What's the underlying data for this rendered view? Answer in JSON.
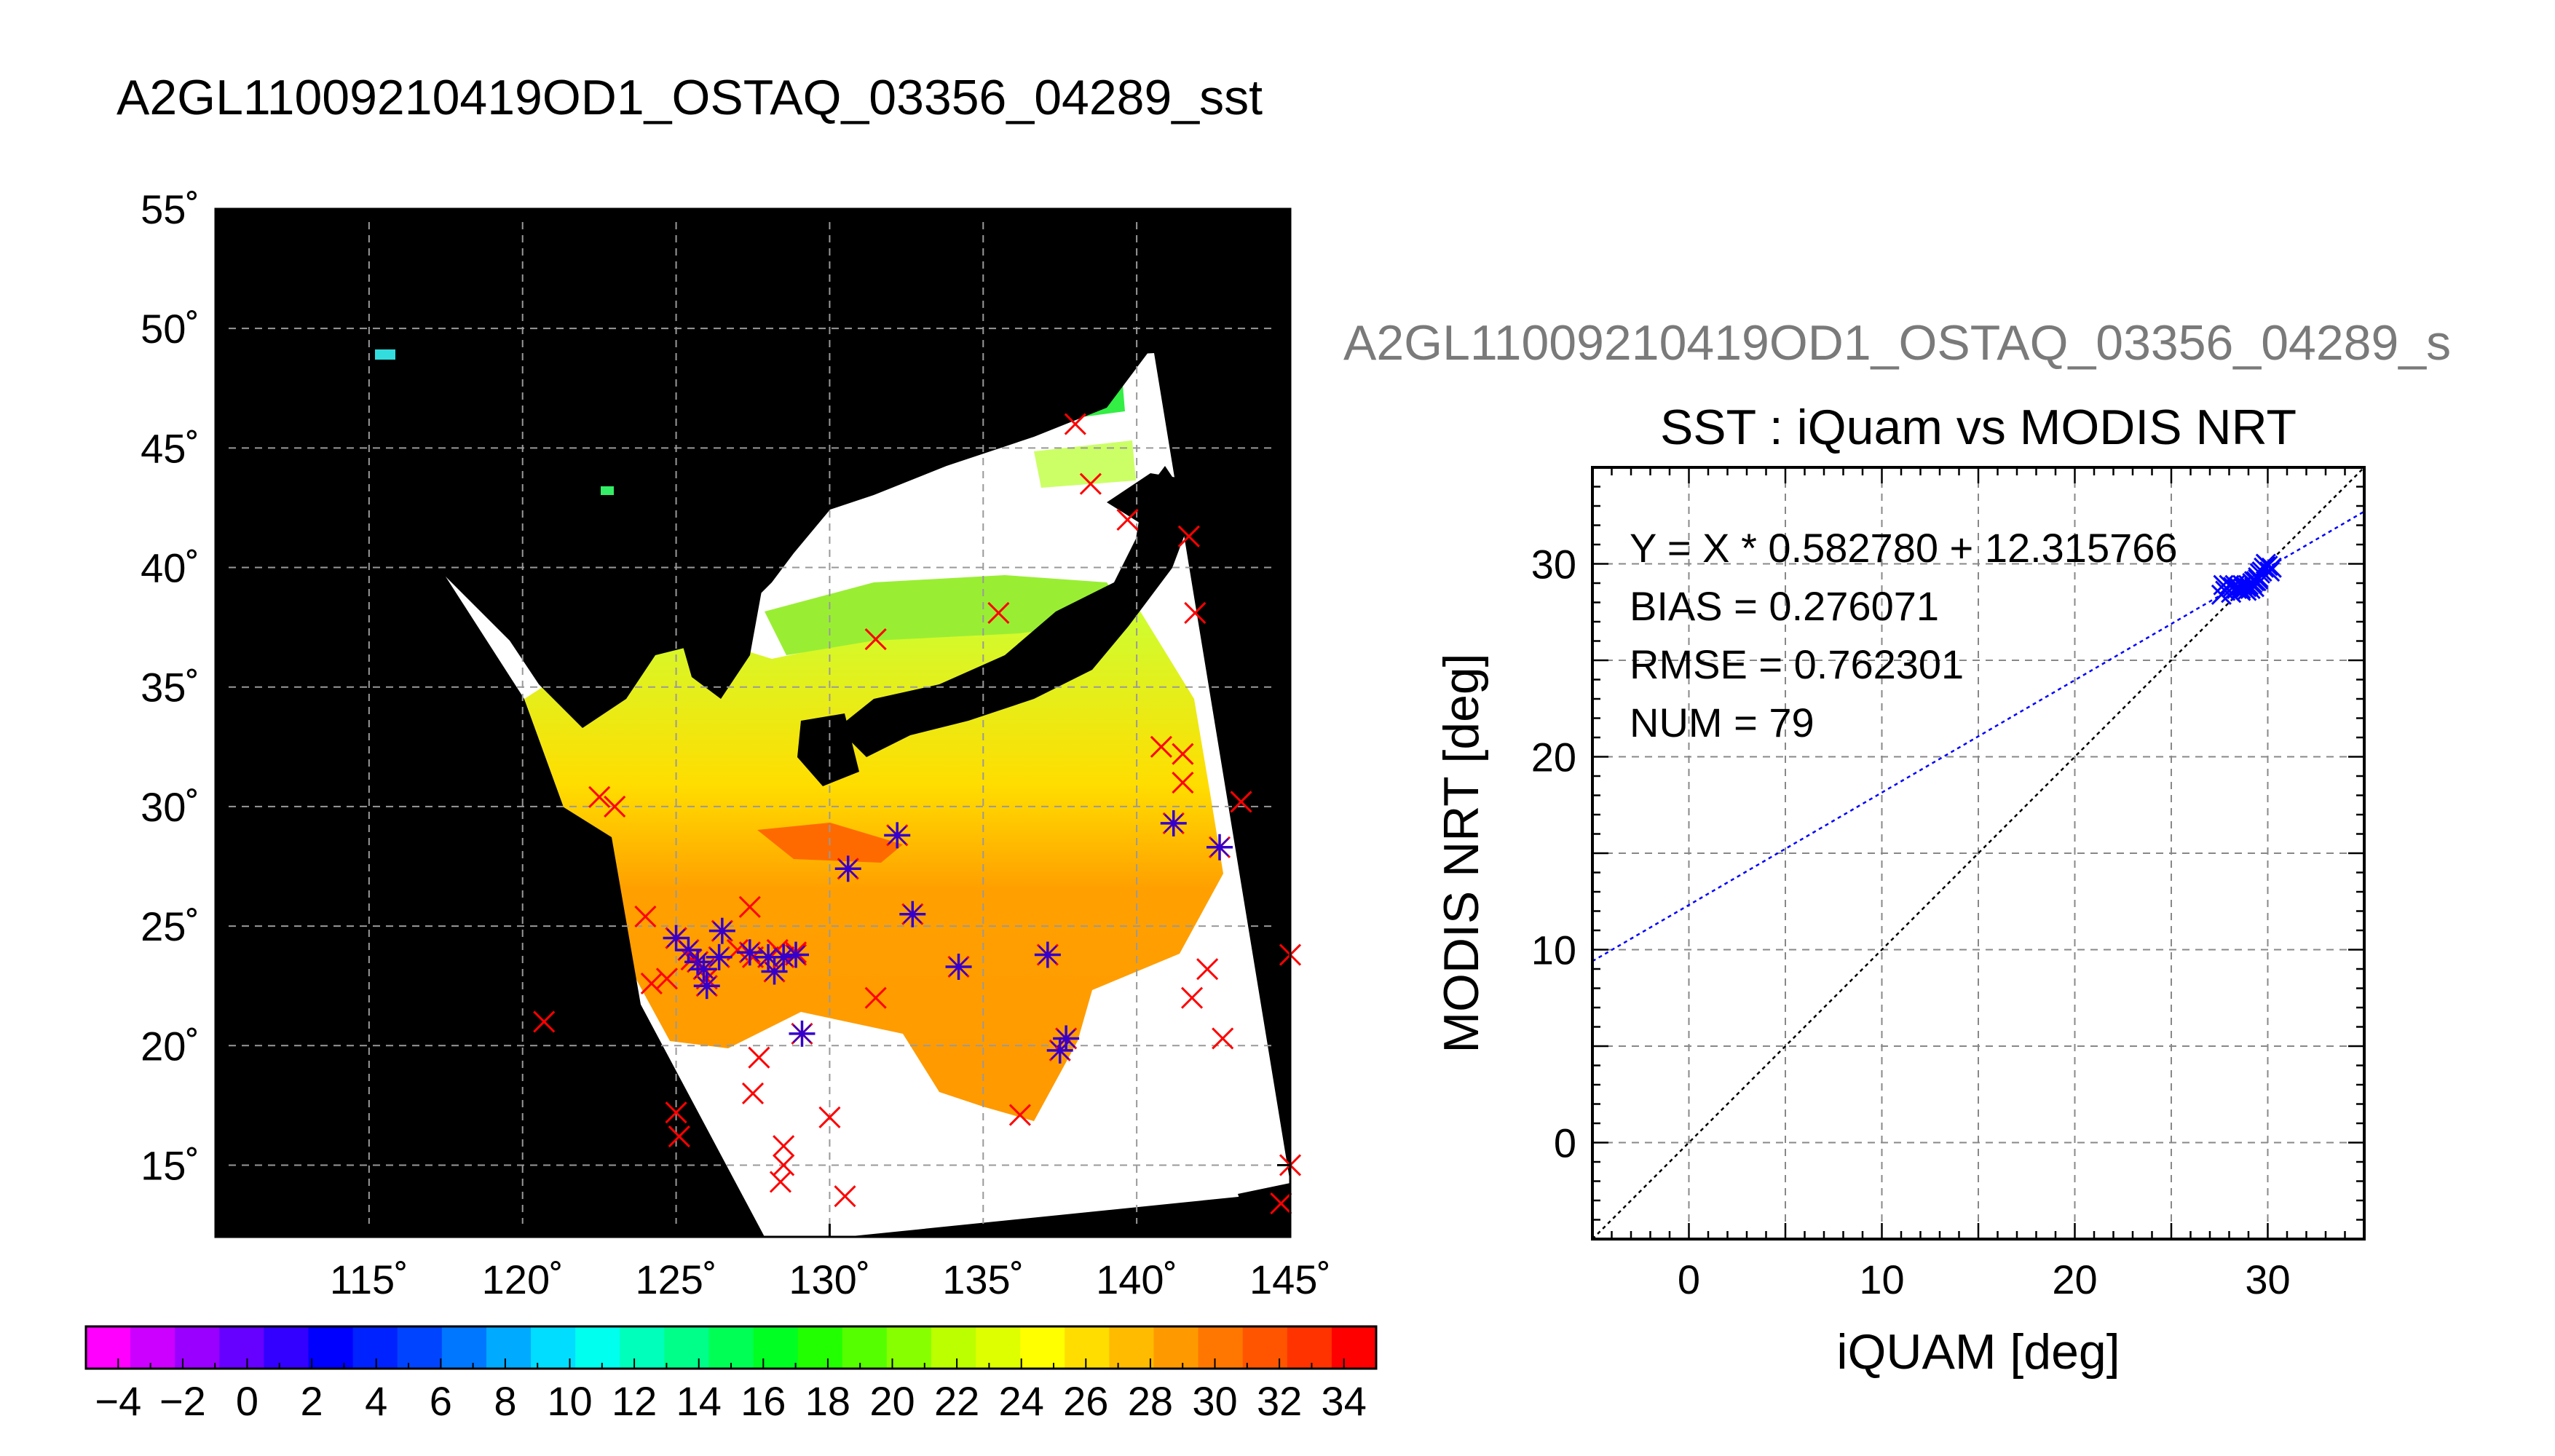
{
  "main_title": "A2GL11009210419OD1_OSTAQ_03356_04289_sst",
  "right_title_truncated": "A2GL11009210419OD1_OSTAQ_03356_04289_s",
  "chart_data": [
    {
      "type": "heatmap",
      "subtype": "map",
      "title": "A2GL11009210419OD1_OSTAQ_03356_04289_sst",
      "xlim": [
        110,
        145
      ],
      "ylim": [
        12,
        55
      ],
      "x_ticks": [
        115,
        120,
        125,
        130,
        135,
        140,
        145
      ],
      "y_ticks": [
        15,
        20,
        25,
        30,
        35,
        40,
        45,
        50,
        55
      ],
      "x_tick_labels": [
        "115˚",
        "120˚",
        "125˚",
        "130˚",
        "135˚",
        "140˚",
        "145˚"
      ],
      "y_tick_labels": [
        "15˚",
        "20˚",
        "25˚",
        "30˚",
        "35˚",
        "40˚",
        "45˚",
        "50˚",
        "55˚"
      ],
      "grid": true,
      "colorbar": {
        "min": -5,
        "max": 35,
        "tick_values": [
          -4,
          -2,
          0,
          2,
          4,
          6,
          8,
          10,
          12,
          14,
          16,
          18,
          20,
          22,
          24,
          26,
          28,
          30,
          32,
          34
        ],
        "tick_labels": [
          "−4",
          "−2",
          "0",
          "2",
          "4",
          "6",
          "8",
          "10",
          "12",
          "14",
          "16",
          "18",
          "20",
          "22",
          "24",
          "26",
          "28",
          "30",
          "32",
          "34"
        ],
        "colors": [
          "#ff00ff",
          "#cc00ff",
          "#9900ff",
          "#6600ff",
          "#3300ff",
          "#0000ff",
          "#0022ff",
          "#0044ff",
          "#0077ff",
          "#00aaff",
          "#00ddff",
          "#00ffee",
          "#00ffbb",
          "#00ff88",
          "#00ff55",
          "#00ff22",
          "#22ff00",
          "#55ff00",
          "#88ff00",
          "#bbff00",
          "#ddff00",
          "#ffff00",
          "#ffdd00",
          "#ffbb00",
          "#ff9900",
          "#ff7700",
          "#ff5500",
          "#ff3300",
          "#ff0000"
        ]
      },
      "markers_red_x": [
        [
          122.5,
          30.4
        ],
        [
          123,
          30
        ],
        [
          124,
          25.4
        ],
        [
          124.2,
          22.6
        ],
        [
          124.7,
          22.8
        ],
        [
          125,
          24.5
        ],
        [
          125.5,
          23.6
        ],
        [
          126,
          22.8
        ],
        [
          127,
          24
        ],
        [
          127.4,
          25.8
        ],
        [
          127.5,
          23.7
        ],
        [
          127.7,
          19.5
        ],
        [
          127.5,
          18
        ],
        [
          128.3,
          24
        ],
        [
          128.5,
          15.8
        ],
        [
          128.5,
          15
        ],
        [
          128.4,
          14.3
        ],
        [
          128.9,
          23.9
        ],
        [
          130,
          17
        ],
        [
          130.5,
          13.7
        ],
        [
          131.5,
          22
        ],
        [
          131.5,
          37
        ],
        [
          135.5,
          38.1
        ],
        [
          136.2,
          17.1
        ],
        [
          138,
          46
        ],
        [
          138.5,
          43.5
        ],
        [
          139.7,
          42
        ],
        [
          140.8,
          32.5
        ],
        [
          141.5,
          32.2
        ],
        [
          141.5,
          31
        ],
        [
          141.7,
          41.3
        ],
        [
          141.9,
          38.1
        ],
        [
          141.8,
          22
        ],
        [
          142.3,
          23.2
        ],
        [
          142.8,
          20.3
        ],
        [
          143.4,
          30.2
        ],
        [
          145,
          23.8
        ],
        [
          145,
          15
        ],
        [
          144.7,
          13.4
        ],
        [
          125,
          17.2
        ],
        [
          125.1,
          16.2
        ],
        [
          120.7,
          21
        ]
      ],
      "markers_blue_star": [
        [
          125,
          24.5
        ],
        [
          125.4,
          24
        ],
        [
          125.7,
          23.5
        ],
        [
          125.9,
          23.2
        ],
        [
          126,
          22.5
        ],
        [
          126.4,
          23.7
        ],
        [
          126.5,
          24.8
        ],
        [
          127.4,
          23.9
        ],
        [
          128,
          23.7
        ],
        [
          128.2,
          23.1
        ],
        [
          128.5,
          23.7
        ],
        [
          128.9,
          23.8
        ],
        [
          129.1,
          20.5
        ],
        [
          130.6,
          27.4
        ],
        [
          132.2,
          28.8
        ],
        [
          132.7,
          25.5
        ],
        [
          134.2,
          23.3
        ],
        [
          137.1,
          23.8
        ],
        [
          137.5,
          19.8
        ],
        [
          137.7,
          20.3
        ],
        [
          141.2,
          29.3
        ],
        [
          142.7,
          28.3
        ]
      ]
    },
    {
      "type": "scatter",
      "title": "SST : iQuam vs MODIS NRT",
      "xlabel": "iQUAM [deg]",
      "ylabel": "MODIS NRT [deg]",
      "xlim": [
        -5,
        35
      ],
      "ylim": [
        -5,
        35
      ],
      "x_ticks": [
        0,
        10,
        20,
        30
      ],
      "y_ticks": [
        0,
        10,
        20,
        30
      ],
      "grid": true,
      "stats": {
        "equation": "Y = X * 0.582780 + 12.315766",
        "bias": "BIAS = 0.276071",
        "rmse": "RMSE = 0.762301",
        "num": "NUM = 79"
      },
      "fit_line": {
        "slope": 0.58278,
        "intercept": 12.315766,
        "color": "#0000ff"
      },
      "identity_line": {
        "color": "#000000"
      },
      "points": {
        "color": "#0000ff",
        "x": [
          27.6,
          27.8,
          28.0,
          28.1,
          28.3,
          28.4,
          28.5,
          28.6,
          28.7,
          28.8,
          28.9,
          29.0,
          29.1,
          29.2,
          29.3,
          29.4,
          29.5,
          29.6,
          29.7,
          29.8,
          29.9,
          30.0,
          30.1,
          29.5,
          28.9,
          28.2,
          27.7,
          29.3,
          30.2,
          28.6
        ],
        "y": [
          28.4,
          28.6,
          28.9,
          28.5,
          28.9,
          28.7,
          28.8,
          28.6,
          28.9,
          28.7,
          28.8,
          28.9,
          28.7,
          29.0,
          28.8,
          29.1,
          29.3,
          29.5,
          29.6,
          29.8,
          30.0,
          29.9,
          29.6,
          29.2,
          28.6,
          28.8,
          28.9,
          29.1,
          29.8,
          28.7
        ]
      }
    }
  ]
}
